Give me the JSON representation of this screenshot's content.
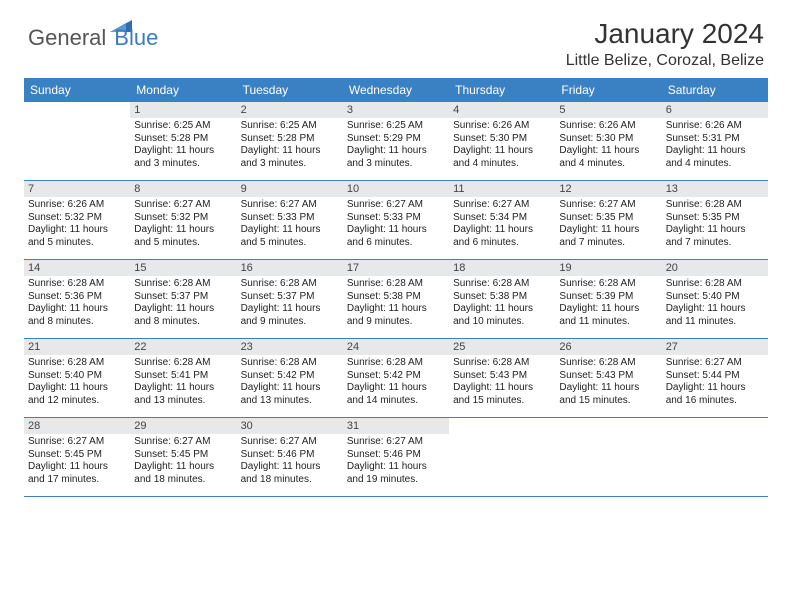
{
  "logo": {
    "word1": "General",
    "word2": "Blue"
  },
  "title": "January 2024",
  "location": "Little Belize, Corozal, Belize",
  "colors": {
    "headerBlue": "#3a81c4",
    "logoBlue": "#3a7cc4",
    "dayNumBg": "#e7e8e9",
    "border": "#3a81c4"
  },
  "dayHeaders": [
    "Sunday",
    "Monday",
    "Tuesday",
    "Wednesday",
    "Thursday",
    "Friday",
    "Saturday"
  ],
  "weeks": [
    [
      null,
      {
        "n": "1",
        "sr": "Sunrise: 6:25 AM",
        "ss": "Sunset: 5:28 PM",
        "d1": "Daylight: 11 hours",
        "d2": "and 3 minutes."
      },
      {
        "n": "2",
        "sr": "Sunrise: 6:25 AM",
        "ss": "Sunset: 5:28 PM",
        "d1": "Daylight: 11 hours",
        "d2": "and 3 minutes."
      },
      {
        "n": "3",
        "sr": "Sunrise: 6:25 AM",
        "ss": "Sunset: 5:29 PM",
        "d1": "Daylight: 11 hours",
        "d2": "and 3 minutes."
      },
      {
        "n": "4",
        "sr": "Sunrise: 6:26 AM",
        "ss": "Sunset: 5:30 PM",
        "d1": "Daylight: 11 hours",
        "d2": "and 4 minutes."
      },
      {
        "n": "5",
        "sr": "Sunrise: 6:26 AM",
        "ss": "Sunset: 5:30 PM",
        "d1": "Daylight: 11 hours",
        "d2": "and 4 minutes."
      },
      {
        "n": "6",
        "sr": "Sunrise: 6:26 AM",
        "ss": "Sunset: 5:31 PM",
        "d1": "Daylight: 11 hours",
        "d2": "and 4 minutes."
      }
    ],
    [
      {
        "n": "7",
        "sr": "Sunrise: 6:26 AM",
        "ss": "Sunset: 5:32 PM",
        "d1": "Daylight: 11 hours",
        "d2": "and 5 minutes."
      },
      {
        "n": "8",
        "sr": "Sunrise: 6:27 AM",
        "ss": "Sunset: 5:32 PM",
        "d1": "Daylight: 11 hours",
        "d2": "and 5 minutes."
      },
      {
        "n": "9",
        "sr": "Sunrise: 6:27 AM",
        "ss": "Sunset: 5:33 PM",
        "d1": "Daylight: 11 hours",
        "d2": "and 5 minutes."
      },
      {
        "n": "10",
        "sr": "Sunrise: 6:27 AM",
        "ss": "Sunset: 5:33 PM",
        "d1": "Daylight: 11 hours",
        "d2": "and 6 minutes."
      },
      {
        "n": "11",
        "sr": "Sunrise: 6:27 AM",
        "ss": "Sunset: 5:34 PM",
        "d1": "Daylight: 11 hours",
        "d2": "and 6 minutes."
      },
      {
        "n": "12",
        "sr": "Sunrise: 6:27 AM",
        "ss": "Sunset: 5:35 PM",
        "d1": "Daylight: 11 hours",
        "d2": "and 7 minutes."
      },
      {
        "n": "13",
        "sr": "Sunrise: 6:28 AM",
        "ss": "Sunset: 5:35 PM",
        "d1": "Daylight: 11 hours",
        "d2": "and 7 minutes."
      }
    ],
    [
      {
        "n": "14",
        "sr": "Sunrise: 6:28 AM",
        "ss": "Sunset: 5:36 PM",
        "d1": "Daylight: 11 hours",
        "d2": "and 8 minutes."
      },
      {
        "n": "15",
        "sr": "Sunrise: 6:28 AM",
        "ss": "Sunset: 5:37 PM",
        "d1": "Daylight: 11 hours",
        "d2": "and 8 minutes."
      },
      {
        "n": "16",
        "sr": "Sunrise: 6:28 AM",
        "ss": "Sunset: 5:37 PM",
        "d1": "Daylight: 11 hours",
        "d2": "and 9 minutes."
      },
      {
        "n": "17",
        "sr": "Sunrise: 6:28 AM",
        "ss": "Sunset: 5:38 PM",
        "d1": "Daylight: 11 hours",
        "d2": "and 9 minutes."
      },
      {
        "n": "18",
        "sr": "Sunrise: 6:28 AM",
        "ss": "Sunset: 5:38 PM",
        "d1": "Daylight: 11 hours",
        "d2": "and 10 minutes."
      },
      {
        "n": "19",
        "sr": "Sunrise: 6:28 AM",
        "ss": "Sunset: 5:39 PM",
        "d1": "Daylight: 11 hours",
        "d2": "and 11 minutes."
      },
      {
        "n": "20",
        "sr": "Sunrise: 6:28 AM",
        "ss": "Sunset: 5:40 PM",
        "d1": "Daylight: 11 hours",
        "d2": "and 11 minutes."
      }
    ],
    [
      {
        "n": "21",
        "sr": "Sunrise: 6:28 AM",
        "ss": "Sunset: 5:40 PM",
        "d1": "Daylight: 11 hours",
        "d2": "and 12 minutes."
      },
      {
        "n": "22",
        "sr": "Sunrise: 6:28 AM",
        "ss": "Sunset: 5:41 PM",
        "d1": "Daylight: 11 hours",
        "d2": "and 13 minutes."
      },
      {
        "n": "23",
        "sr": "Sunrise: 6:28 AM",
        "ss": "Sunset: 5:42 PM",
        "d1": "Daylight: 11 hours",
        "d2": "and 13 minutes."
      },
      {
        "n": "24",
        "sr": "Sunrise: 6:28 AM",
        "ss": "Sunset: 5:42 PM",
        "d1": "Daylight: 11 hours",
        "d2": "and 14 minutes."
      },
      {
        "n": "25",
        "sr": "Sunrise: 6:28 AM",
        "ss": "Sunset: 5:43 PM",
        "d1": "Daylight: 11 hours",
        "d2": "and 15 minutes."
      },
      {
        "n": "26",
        "sr": "Sunrise: 6:28 AM",
        "ss": "Sunset: 5:43 PM",
        "d1": "Daylight: 11 hours",
        "d2": "and 15 minutes."
      },
      {
        "n": "27",
        "sr": "Sunrise: 6:27 AM",
        "ss": "Sunset: 5:44 PM",
        "d1": "Daylight: 11 hours",
        "d2": "and 16 minutes."
      }
    ],
    [
      {
        "n": "28",
        "sr": "Sunrise: 6:27 AM",
        "ss": "Sunset: 5:45 PM",
        "d1": "Daylight: 11 hours",
        "d2": "and 17 minutes."
      },
      {
        "n": "29",
        "sr": "Sunrise: 6:27 AM",
        "ss": "Sunset: 5:45 PM",
        "d1": "Daylight: 11 hours",
        "d2": "and 18 minutes."
      },
      {
        "n": "30",
        "sr": "Sunrise: 6:27 AM",
        "ss": "Sunset: 5:46 PM",
        "d1": "Daylight: 11 hours",
        "d2": "and 18 minutes."
      },
      {
        "n": "31",
        "sr": "Sunrise: 6:27 AM",
        "ss": "Sunset: 5:46 PM",
        "d1": "Daylight: 11 hours",
        "d2": "and 19 minutes."
      },
      null,
      null,
      null
    ]
  ]
}
